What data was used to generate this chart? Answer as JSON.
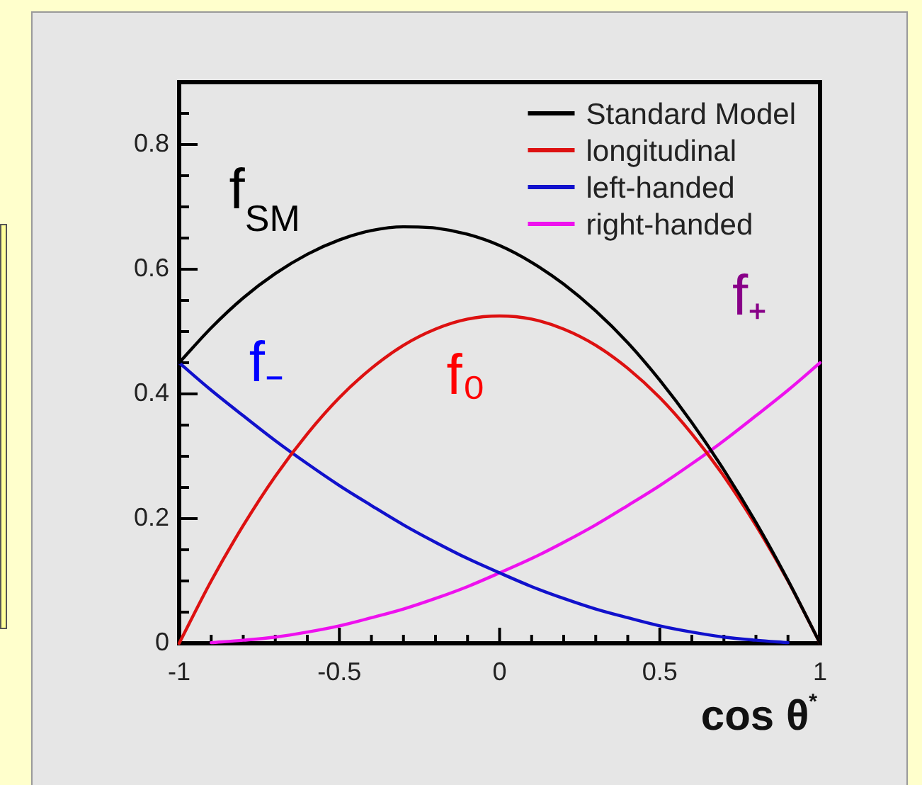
{
  "chart_data": {
    "type": "line",
    "xlabel": "cos θ$^{*}$",
    "x": [
      -1,
      -0.9,
      -0.8,
      -0.7,
      -0.6,
      -0.5,
      -0.4,
      -0.3,
      -0.2,
      -0.1,
      0,
      0.1,
      0.2,
      0.3,
      0.4,
      0.5,
      0.6,
      0.7,
      0.8,
      0.9,
      1
    ],
    "series": [
      {
        "name": "Standard Model",
        "color": "#000000",
        "values": [
          0.45,
          0.506,
          0.554,
          0.593,
          0.624,
          0.647,
          0.662,
          0.668,
          0.666,
          0.656,
          0.638,
          0.611,
          0.576,
          0.533,
          0.482,
          0.422,
          0.354,
          0.278,
          0.194,
          0.101,
          0
        ]
      },
      {
        "name": "longitudinal",
        "color": "#dd1111",
        "values": [
          0,
          0.1,
          0.189,
          0.268,
          0.336,
          0.394,
          0.441,
          0.478,
          0.504,
          0.52,
          0.525,
          0.52,
          0.504,
          0.478,
          0.441,
          0.394,
          0.336,
          0.268,
          0.189,
          0.1,
          0
        ]
      },
      {
        "name": "left-handed",
        "color": "#1111cc",
        "values": [
          0.45,
          0.406,
          0.365,
          0.325,
          0.288,
          0.253,
          0.221,
          0.19,
          0.162,
          0.136,
          0.113,
          0.091,
          0.072,
          0.055,
          0.041,
          0.028,
          0.018,
          0.01,
          0.005,
          0.001,
          null
        ]
      },
      {
        "name": "right-handed",
        "color": "#ee11ee",
        "values": [
          null,
          0.001,
          0.005,
          0.01,
          0.018,
          0.028,
          0.041,
          0.055,
          0.072,
          0.091,
          0.113,
          0.136,
          0.162,
          0.19,
          0.221,
          0.253,
          0.288,
          0.325,
          0.365,
          0.406,
          0.45
        ]
      }
    ],
    "xlim": [
      -1,
      1
    ],
    "xticks": [
      -1,
      {
        "value": -0.9,
        "label": null
      },
      {
        "value": -0.8,
        "label": null
      },
      {
        "value": -0.7,
        "label": null
      },
      {
        "value": -0.6,
        "label": null
      },
      -0.5,
      {
        "value": -0.4,
        "label": null
      },
      {
        "value": -0.3,
        "label": null
      },
      {
        "value": -0.2,
        "label": null
      },
      {
        "value": -0.1,
        "label": null
      },
      0,
      {
        "value": 0.1,
        "label": null
      },
      {
        "value": 0.2,
        "label": null
      },
      {
        "value": 0.3,
        "label": null
      },
      {
        "value": 0.4,
        "label": null
      },
      0.5,
      {
        "value": 0.6,
        "label": null
      },
      {
        "value": 0.7,
        "label": null
      },
      {
        "value": 0.8,
        "label": null
      },
      {
        "value": 0.9,
        "label": null
      },
      1
    ],
    "ylim": [
      0,
      0.9
    ],
    "yticks": [
      0,
      {
        "value": 0.05,
        "label": null
      },
      {
        "value": 0.1,
        "label": null
      },
      {
        "value": 0.15,
        "label": null
      },
      0.2,
      {
        "value": 0.25,
        "label": null
      },
      {
        "value": 0.3,
        "label": null
      },
      {
        "value": 0.35,
        "label": null
      },
      0.4,
      {
        "value": 0.45,
        "label": null
      },
      {
        "value": 0.5,
        "label": null
      },
      {
        "value": 0.55,
        "label": null
      },
      0.6,
      {
        "value": 0.65,
        "label": null
      },
      {
        "value": 0.7,
        "label": null
      },
      {
        "value": 0.75,
        "label": null
      },
      0.8,
      {
        "value": 0.85,
        "label": null
      }
    ],
    "legend": "top right",
    "annotations": [
      "f$_{SM}$",
      "f₀",
      "f₋",
      "f₊"
    ]
  }
}
